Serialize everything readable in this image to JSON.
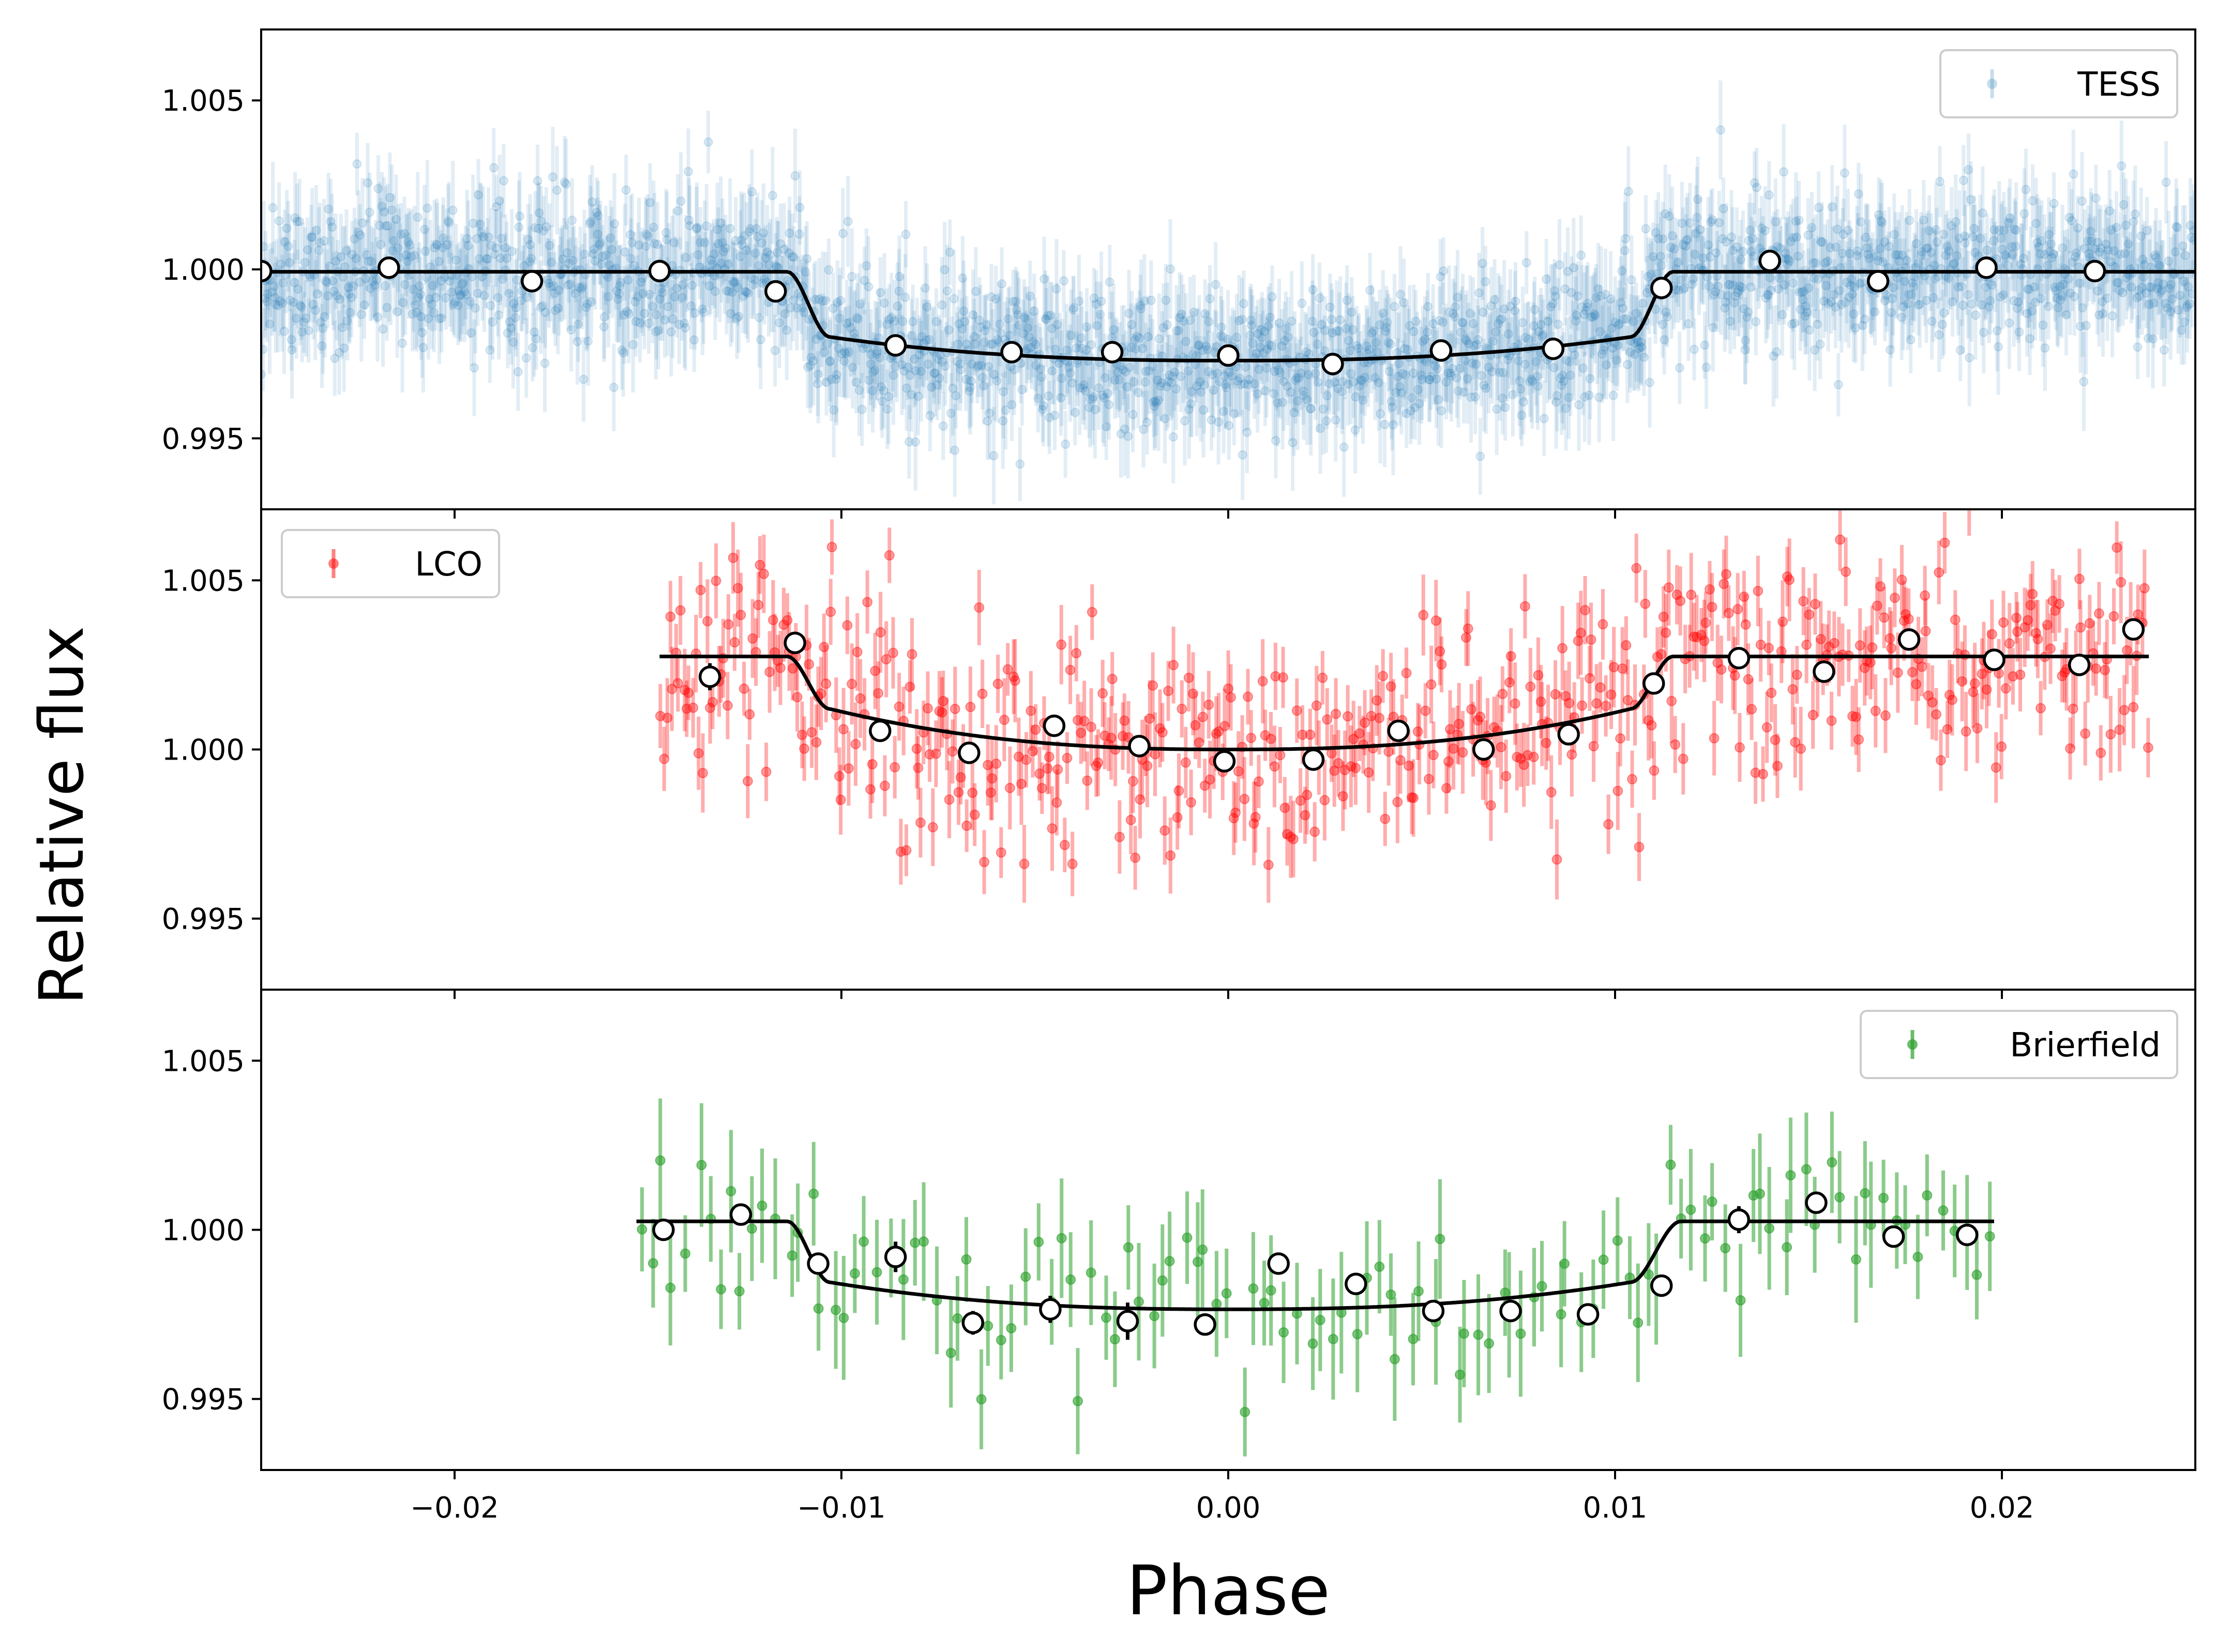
{
  "figure": {
    "xlabel": "Phase",
    "ylabel": "Relative flux"
  },
  "colors": {
    "tess": "#1f77b4",
    "lco": "#ff0000",
    "brierfield": "#2ca02c",
    "model": "#000000",
    "binned_face": "#ffffff",
    "binned_edge": "#000000"
  },
  "chart_data": [
    {
      "type": "scatter",
      "panel": "TESS",
      "legend": "TESS",
      "legend_position": "top-right",
      "color": "#1f77b4",
      "xlim": [
        -0.025,
        0.025
      ],
      "ylim": [
        0.9929,
        1.0071
      ],
      "yticks": [
        0.995,
        1.0,
        1.005
      ],
      "ytick_labels": [
        "0.995",
        "1.000",
        "1.005"
      ],
      "model": {
        "baseline": 0.99993,
        "depth_center": 0.9973,
        "depth_edge": 0.998,
        "ingress": -0.0114,
        "full_start": -0.0103,
        "full_end": 0.0104,
        "egress": 0.0115
      },
      "raw": {
        "n_points": 1900,
        "x_range": [
          -0.025,
          0.025
        ],
        "scatter": 0.0011,
        "errorbar": 0.0012
      },
      "binned": {
        "x": [
          -0.025,
          -0.0217,
          -0.018,
          -0.0147,
          -0.0117,
          -0.0086,
          -0.0056,
          -0.003,
          0.0,
          0.0027,
          0.0055,
          0.0084,
          0.0112,
          0.014,
          0.0168,
          0.0196,
          0.0224
        ],
        "y": [
          0.99995,
          1.00005,
          0.99965,
          0.99995,
          0.99935,
          0.99775,
          0.99755,
          0.99755,
          0.99745,
          0.9972,
          0.9976,
          0.99765,
          0.99945,
          1.00025,
          0.99965,
          1.00005,
          0.99995
        ]
      }
    },
    {
      "type": "scatter",
      "panel": "LCO",
      "legend": "LCO",
      "legend_position": "top-left",
      "color": "#ff0000",
      "xlim": [
        -0.025,
        0.025
      ],
      "ylim": [
        0.9929,
        1.0071
      ],
      "yticks": [
        0.995,
        1.0,
        1.005
      ],
      "ytick_labels": [
        "0.995",
        "1.000",
        "1.005"
      ],
      "model": {
        "baseline": 1.00275,
        "depth_center": 1.0,
        "depth_edge": 1.0012,
        "ingress": -0.0114,
        "full_start": -0.0103,
        "full_end": 0.0104,
        "egress": 0.0115,
        "x_range": [
          -0.0147,
          0.0238
        ]
      },
      "raw": {
        "n_points": 520,
        "x_range": [
          -0.0147,
          0.0238
        ],
        "scatter": 0.0016,
        "errorbar": 0.001
      },
      "binned": {
        "x": [
          -0.0134,
          -0.0112,
          -0.009,
          -0.0067,
          -0.0045,
          -0.0023,
          -0.0001,
          0.0022,
          0.0044,
          0.0066,
          0.0088,
          0.011,
          0.0132,
          0.0154,
          0.0176,
          0.0198,
          0.022,
          0.0234
        ],
        "y": [
          1.00215,
          1.00315,
          1.00055,
          0.9999,
          1.0007,
          1.0001,
          0.99965,
          0.9997,
          1.00055,
          1.0,
          1.00045,
          1.00195,
          1.0027,
          1.0023,
          1.00325,
          1.00265,
          1.0025,
          1.00355
        ],
        "err": [
          0.0004,
          0.00025,
          0.0003,
          0.0003,
          0.00025,
          0.0003,
          0.00025,
          0.0003,
          0.00025,
          0.00025,
          0.00025,
          0.0002,
          0.00025,
          0.00025,
          0.00025,
          0.00025,
          0.0003,
          0.0003
        ]
      }
    },
    {
      "type": "scatter",
      "panel": "Brierfield",
      "legend": "Brierfield",
      "legend_position": "top-right",
      "color": "#2ca02c",
      "xlim": [
        -0.025,
        0.025
      ],
      "ylim": [
        0.9929,
        1.0071
      ],
      "yticks": [
        0.995,
        1.0,
        1.005
      ],
      "ytick_labels": [
        "0.995",
        "1.000",
        "1.005"
      ],
      "xticks": [
        -0.02,
        -0.01,
        0.0,
        0.01,
        0.02
      ],
      "xtick_labels": [
        "−0.02",
        "−0.01",
        "0.00",
        "0.01",
        "0.02"
      ],
      "model": {
        "baseline": 1.00025,
        "depth_center": 0.99765,
        "depth_edge": 0.99845,
        "ingress": -0.0114,
        "full_start": -0.0103,
        "full_end": 0.0104,
        "egress": 0.0117,
        "x_range": [
          -0.0153,
          0.0198
        ]
      },
      "raw": {
        "n_points": 120,
        "x_range": [
          -0.0153,
          0.0198
        ],
        "scatter": 0.0011,
        "errorbar": 0.0015
      },
      "binned": {
        "x": [
          -0.0146,
          -0.0126,
          -0.0106,
          -0.0086,
          -0.0066,
          -0.0046,
          -0.0026,
          -0.0006,
          0.0013,
          0.0033,
          0.0053,
          0.0073,
          0.0093,
          0.0112,
          0.0132,
          0.0152,
          0.0172,
          0.0191
        ],
        "y": [
          1.0,
          1.00045,
          0.999,
          0.9992,
          0.99725,
          0.99765,
          0.9973,
          0.9972,
          0.999,
          0.9984,
          0.9976,
          0.9976,
          0.9975,
          0.99835,
          1.0003,
          1.0008,
          0.9998,
          0.99985
        ],
        "err": [
          0.00025,
          0.0002,
          0.00025,
          0.00045,
          0.00035,
          0.0004,
          0.00055,
          0.00025,
          0.0003,
          0.00025,
          0.0002,
          0.00025,
          0.0002,
          0.00025,
          0.0004,
          0.00025,
          0.00025,
          0.00025
        ]
      }
    }
  ]
}
